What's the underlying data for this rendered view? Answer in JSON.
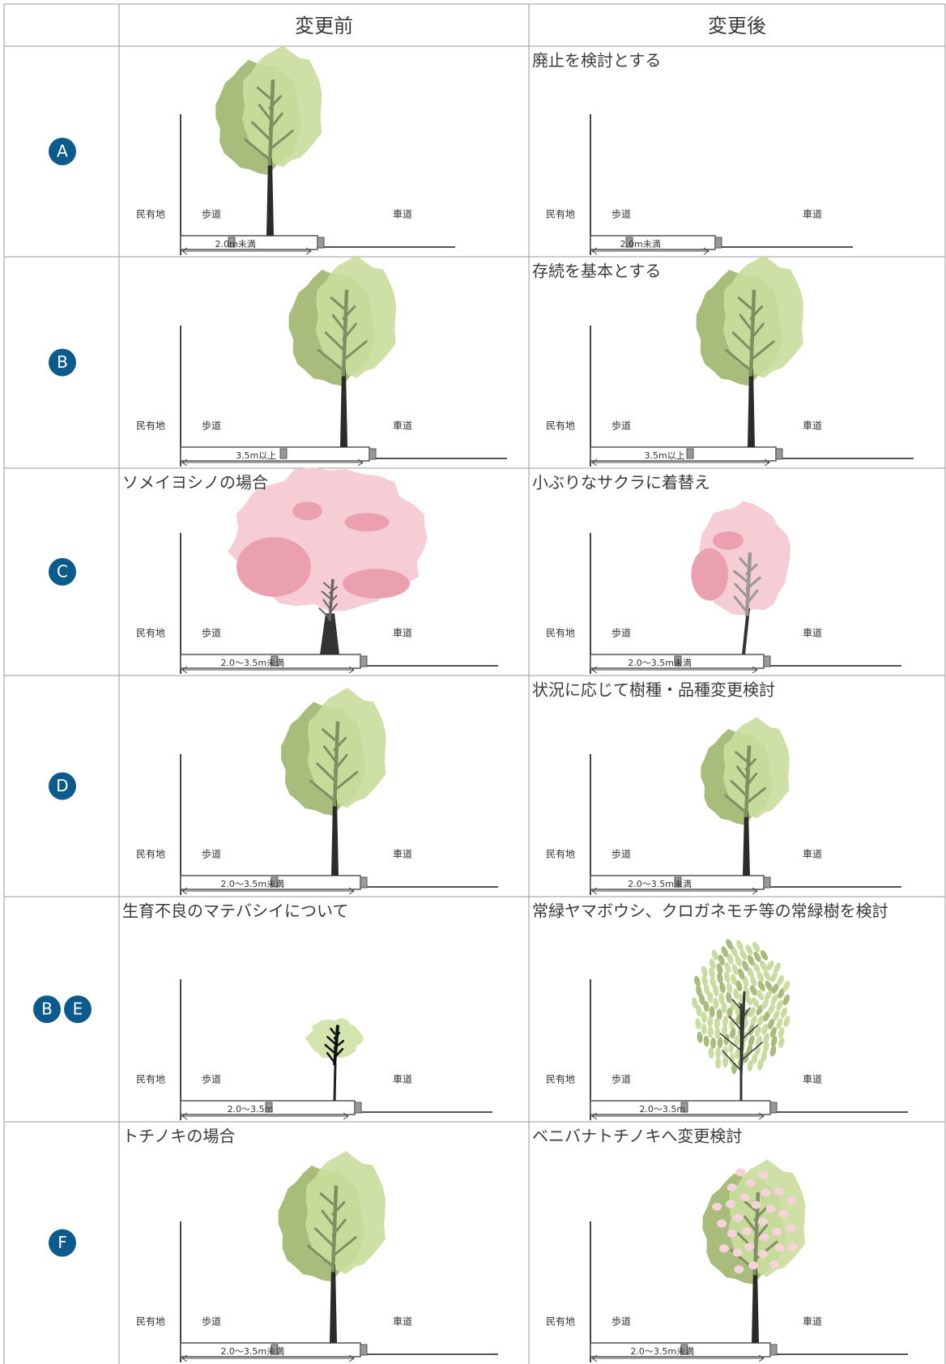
{
  "table": {
    "headers": [
      "変更前",
      "変更後"
    ],
    "rows": [
      {
        "badges": [
          "A"
        ],
        "before": {
          "width": "2.0m未満"
        },
        "after": {
          "caption": "廃止を検討とする",
          "width": "2.0m未満"
        }
      },
      {
        "badges": [
          "B"
        ],
        "before": {
          "width": "3.5m以上"
        },
        "after": {
          "caption": "存続を基本とする",
          "width": "3.5m以上"
        }
      },
      {
        "badges": [
          "C"
        ],
        "before": {
          "caption": "ソメイヨシノの場合",
          "width": "2.0〜3.5m未満"
        },
        "after": {
          "caption": "小ぶりなサクラに着替え",
          "width": "2.0〜3.5m未満"
        }
      },
      {
        "badges": [
          "D"
        ],
        "before": {
          "width": "2.0〜3.5m未満"
        },
        "after": {
          "caption": "状況に応じて樹種・品種変更検討",
          "width": "2.0〜3.5m未満"
        }
      },
      {
        "badges": [
          "B",
          "E"
        ],
        "before": {
          "caption": "生育不良のマテバシイについて",
          "width": "2.0〜3.5m"
        },
        "after": {
          "caption": "常緑ヤマボウシ、クロガネモチ等の常緑樹を検討",
          "width": "2.0〜3.5m"
        }
      },
      {
        "badges": [
          "F"
        ],
        "before": {
          "caption": "トチノキの場合",
          "width": "2.0〜3.5m未満"
        },
        "after": {
          "caption": "ベニバナトチノキへ変更検討",
          "width": "2.0〜3.5m未満"
        }
      }
    ]
  },
  "diagram_labels": {
    "private_land": "民有地",
    "sidewalk": "歩道",
    "roadway": "車道"
  }
}
